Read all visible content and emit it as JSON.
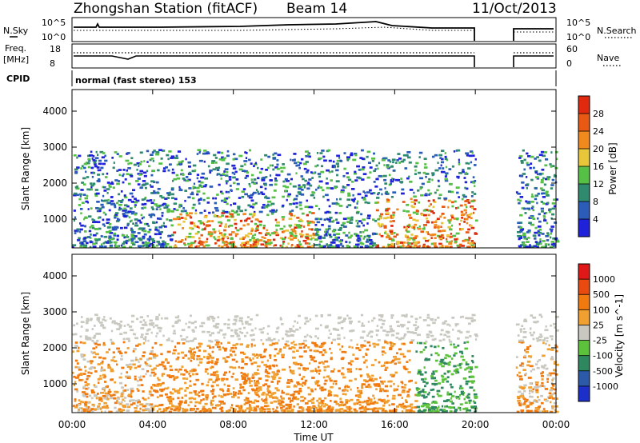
{
  "header": {
    "station": "Zhongshan Station (fitACF)",
    "beam": "Beam 14",
    "date": "11/Oct/2013"
  },
  "strip_nsky": {
    "left_label": "N.Sky",
    "left_ticks": [
      "10^5",
      "10^0"
    ],
    "right_label": "N.Search",
    "right_ticks": [
      "10^5",
      "10^0"
    ]
  },
  "strip_freq": {
    "left_label_line1": "Freq.",
    "left_label_line2": "[MHz]",
    "left_ticks": [
      "18",
      "8"
    ],
    "right_label": "Nave",
    "right_ticks": [
      "60",
      "0"
    ]
  },
  "strip_cpid": {
    "label": "CPID",
    "text": "normal (fast stereo) 153"
  },
  "chart_data": [
    {
      "type": "heatmap",
      "name": "power",
      "ylabel": "Slant Range [km]",
      "yticks": [
        "1000",
        "2000",
        "3000",
        "4000"
      ],
      "ylim": [
        200,
        4600
      ],
      "xlim_hours": [
        0,
        24
      ],
      "data_gap_hours": [
        20,
        22
      ],
      "colorbar": {
        "label": "Power [dB]",
        "ticks": [
          "4",
          "8",
          "12",
          "16",
          "20",
          "24",
          "28"
        ],
        "colors": [
          "#1f22d8",
          "#2a5cb8",
          "#2f8a6e",
          "#56c046",
          "#e8c63a",
          "#f08a1e",
          "#e85a14",
          "#e02a10"
        ]
      }
    },
    {
      "type": "heatmap",
      "name": "velocity",
      "ylabel": "Slant Range [km]",
      "yticks": [
        "1000",
        "2000",
        "3000",
        "4000"
      ],
      "ylim": [
        200,
        4600
      ],
      "xlim_hours": [
        0,
        24
      ],
      "data_gap_hours": [
        20,
        22
      ],
      "colorbar": {
        "label": "Velocity [m s^-1]",
        "ticks": [
          "1000",
          "500",
          "100",
          "25",
          "-25",
          "-100",
          "-500",
          "-1000"
        ],
        "colors": [
          "#1c2fc8",
          "#2d5aa8",
          "#2f8760",
          "#5cc23c",
          "#c8c8c0",
          "#f0a030",
          "#f07a10",
          "#e84a10",
          "#e01818"
        ]
      }
    }
  ],
  "x_axis": {
    "ticks": [
      "00:00",
      "04:00",
      "08:00",
      "12:00",
      "16:00",
      "20:00",
      "00:00"
    ],
    "label": "Time UT"
  }
}
